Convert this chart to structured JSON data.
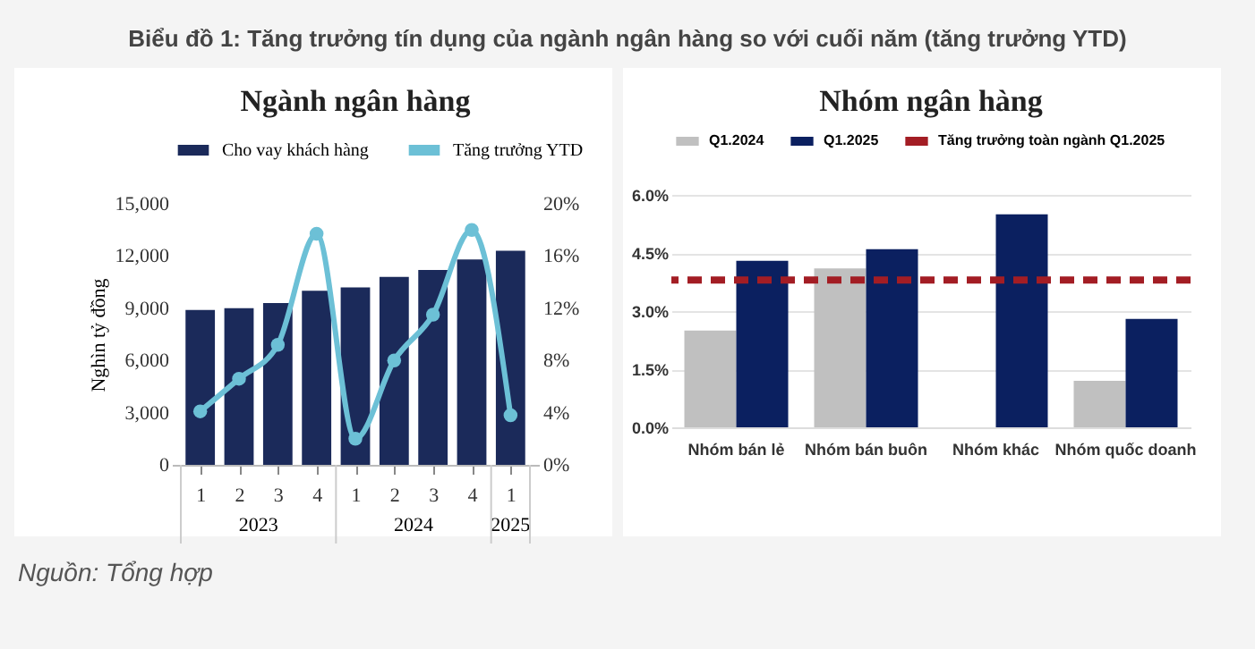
{
  "chart_data": [
    {
      "type": "bar",
      "title": "Ngành ngân hàng",
      "ylabel": "Nghìn tỷ đồng",
      "categories": [
        "1",
        "2",
        "3",
        "4",
        "1",
        "2",
        "3",
        "4",
        "1"
      ],
      "series": [
        {
          "name": "Cho vay khách hàng",
          "color": "#1b2a5a",
          "values": [
            8900,
            9000,
            9300,
            10000,
            10200,
            10800,
            11200,
            11800,
            12300
          ]
        },
        {
          "name": "Tăng trưởng YTD",
          "type": "line",
          "axis": "y2",
          "color": "#6cc0d6",
          "values": [
            4.1,
            6.6,
            9.2,
            17.7,
            2.0,
            8.0,
            11.5,
            18.0,
            3.8
          ]
        }
      ],
      "ylim": [
        0,
        15000
      ],
      "yticks": [
        0,
        {
          "value": 3000,
          "label": "3,000"
        },
        {
          "value": 6000,
          "label": "6,000"
        },
        {
          "value": 9000,
          "label": "9,000"
        },
        {
          "value": 12000,
          "label": "12,000"
        },
        {
          "value": 15000,
          "label": "15,000"
        }
      ],
      "y2lim": [
        0,
        20
      ],
      "y2ticks": [
        {
          "value": 0,
          "label": "0%"
        },
        {
          "value": 4,
          "label": "4%"
        },
        {
          "value": 8,
          "label": "8%"
        },
        {
          "value": 12,
          "label": "12%"
        },
        {
          "value": 16,
          "label": "16%"
        },
        {
          "value": 20,
          "label": "20%"
        }
      ],
      "annotations": [
        "2023",
        "2024",
        "2025"
      ],
      "legend": "top",
      "marker": "circle"
    },
    {
      "type": "bar",
      "title": "Nhóm ngân hàng",
      "categories": [
        "Nhóm bán lẻ",
        "Nhóm bán buôn",
        "Nhóm khác",
        "Nhóm quốc doanh"
      ],
      "series": [
        {
          "name": "Q1.2024",
          "color": "#c0c0c0",
          "values": [
            2.5,
            4.1,
            null,
            1.2
          ]
        },
        {
          "name": "Q1.2025",
          "color": "#0b2060",
          "values": [
            4.3,
            4.6,
            5.5,
            2.8
          ]
        }
      ],
      "ylim": [
        0,
        6
      ],
      "yticks": [
        {
          "value": 0,
          "label": "0.0%"
        },
        {
          "value": 1.5,
          "label": "1.5%"
        },
        {
          "value": 3,
          "label": "3.0%"
        },
        {
          "value": 4.5,
          "label": "4.5%"
        },
        {
          "value": 6,
          "label": "6.0%"
        }
      ],
      "ref_lines": [
        {
          "axis": "y",
          "value": 3.8,
          "label": "Tăng trưởng toàn ngành Q1.2025",
          "color": "#a31d24",
          "line_style": "dashed"
        }
      ],
      "annotations": [
        "Biểu đồ 1: Tăng trưởng tín dụng của ngành ngân hàng so với cuối năm (tăng trưởng YTD)",
        "Nguồn: Tổng hợp"
      ],
      "grid": "y",
      "legend": "top"
    }
  ]
}
